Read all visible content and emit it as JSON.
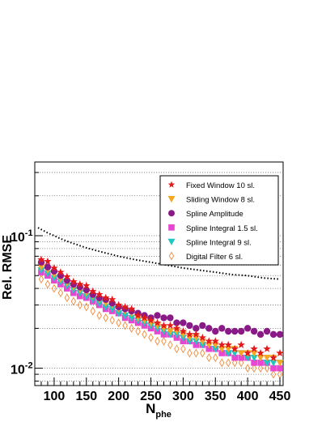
{
  "chart_data": {
    "type": "scatter",
    "xlabel": "N",
    "xlabel_sub": "phe",
    "ylabel": "Rel. RMSE",
    "xlim": [
      70,
      455
    ],
    "ylim": [
      0.0074,
      0.36
    ],
    "yscale": "log",
    "x_ticks": [
      100,
      150,
      200,
      250,
      300,
      350,
      400,
      450
    ],
    "x_tick_labels": [
      "100",
      "150",
      "200",
      "250",
      "300",
      "350",
      "400",
      "450"
    ],
    "y_tick_labels": [
      {
        "value": 0.1,
        "base": "10",
        "exp": "-1"
      },
      {
        "value": 0.01,
        "base": "10",
        "exp": "-2"
      }
    ],
    "grid": "horizontal-dotted",
    "legend_position": "top-right",
    "series": [
      {
        "name": "Fixed Window 10 sl.",
        "marker": "star",
        "color": "#e31a1c",
        "x": [
          80,
          90,
          100,
          110,
          120,
          130,
          140,
          150,
          160,
          170,
          180,
          190,
          200,
          210,
          220,
          230,
          240,
          250,
          260,
          270,
          280,
          290,
          300,
          310,
          320,
          330,
          340,
          350,
          360,
          370,
          380,
          390,
          400,
          410,
          420,
          430,
          440,
          450
        ],
        "y": [
          0.066,
          0.064,
          0.057,
          0.053,
          0.049,
          0.045,
          0.043,
          0.042,
          0.038,
          0.036,
          0.034,
          0.033,
          0.03,
          0.029,
          0.028,
          0.025,
          0.024,
          0.023,
          0.022,
          0.021,
          0.021,
          0.02,
          0.019,
          0.018,
          0.018,
          0.017,
          0.016,
          0.016,
          0.015,
          0.015,
          0.014,
          0.015,
          0.013,
          0.014,
          0.013,
          0.014,
          0.012,
          0.013
        ]
      },
      {
        "name": "Sliding Window 8 sl.",
        "marker": "triangle-down",
        "color": "#f5a623",
        "x": [
          80,
          90,
          100,
          110,
          120,
          130,
          140,
          150,
          160,
          170,
          180,
          190,
          200,
          210,
          220,
          230,
          240,
          250,
          260,
          270,
          280,
          290,
          300,
          310,
          320,
          330,
          340,
          350,
          360,
          370,
          380,
          390,
          400,
          410,
          420,
          430,
          440,
          450
        ],
        "y": [
          0.058,
          0.055,
          0.051,
          0.047,
          0.044,
          0.041,
          0.039,
          0.037,
          0.035,
          0.033,
          0.031,
          0.03,
          0.028,
          0.027,
          0.026,
          0.024,
          0.023,
          0.022,
          0.021,
          0.02,
          0.019,
          0.019,
          0.018,
          0.017,
          0.017,
          0.016,
          0.015,
          0.015,
          0.014,
          0.014,
          0.014,
          0.013,
          0.013,
          0.013,
          0.012,
          0.012,
          0.012,
          0.011
        ]
      },
      {
        "name": "Spline Amplitude",
        "marker": "circle",
        "color": "#8b1a89",
        "x": [
          80,
          90,
          100,
          110,
          120,
          130,
          140,
          150,
          160,
          170,
          180,
          190,
          200,
          210,
          220,
          230,
          240,
          250,
          260,
          270,
          280,
          290,
          300,
          310,
          320,
          330,
          340,
          350,
          360,
          370,
          380,
          390,
          400,
          410,
          420,
          430,
          440,
          450
        ],
        "y": [
          0.063,
          0.058,
          0.054,
          0.05,
          0.046,
          0.043,
          0.041,
          0.039,
          0.036,
          0.034,
          0.033,
          0.031,
          0.029,
          0.028,
          0.027,
          0.026,
          0.025,
          0.024,
          0.025,
          0.024,
          0.024,
          0.022,
          0.022,
          0.021,
          0.02,
          0.021,
          0.02,
          0.019,
          0.02,
          0.019,
          0.019,
          0.019,
          0.02,
          0.019,
          0.018,
          0.019,
          0.018,
          0.018
        ]
      },
      {
        "name": "Spline Integral 1.5 sl.",
        "marker": "square",
        "color": "#e845d2",
        "x": [
          80,
          90,
          100,
          110,
          120,
          130,
          140,
          150,
          160,
          170,
          180,
          190,
          200,
          210,
          220,
          230,
          240,
          250,
          260,
          270,
          280,
          290,
          300,
          310,
          320,
          330,
          340,
          350,
          360,
          370,
          380,
          390,
          400,
          410,
          420,
          430,
          440,
          450
        ],
        "y": [
          0.053,
          0.05,
          0.046,
          0.043,
          0.04,
          0.037,
          0.035,
          0.034,
          0.032,
          0.03,
          0.028,
          0.027,
          0.026,
          0.024,
          0.023,
          0.022,
          0.021,
          0.02,
          0.019,
          0.018,
          0.018,
          0.017,
          0.016,
          0.016,
          0.015,
          0.015,
          0.014,
          0.014,
          0.013,
          0.013,
          0.012,
          0.012,
          0.012,
          0.011,
          0.011,
          0.011,
          0.01,
          0.01
        ]
      },
      {
        "name": "Spline Integral 9 sl.",
        "marker": "triangle-down",
        "color": "#1fc7c1",
        "x": [
          80,
          90,
          100,
          110,
          120,
          130,
          140,
          150,
          160,
          170,
          180,
          190,
          200,
          210,
          220,
          230,
          240,
          250,
          260,
          270,
          280,
          290,
          300,
          310,
          320,
          330,
          340,
          350,
          360,
          370,
          380,
          390,
          400,
          410,
          420,
          430,
          440,
          450
        ],
        "y": [
          0.055,
          0.052,
          0.048,
          0.045,
          0.042,
          0.039,
          0.037,
          0.035,
          0.033,
          0.031,
          0.029,
          0.028,
          0.026,
          0.025,
          0.024,
          0.023,
          0.022,
          0.021,
          0.02,
          0.019,
          0.018,
          0.018,
          0.017,
          0.016,
          0.016,
          0.015,
          0.015,
          0.014,
          0.014,
          0.013,
          0.013,
          0.013,
          0.012,
          0.012,
          0.012,
          0.011,
          0.011,
          0.011
        ]
      },
      {
        "name": "Digital Filter 6 sl.",
        "marker": "diamond-open",
        "color": "#f08a3c",
        "x": [
          80,
          90,
          100,
          110,
          120,
          130,
          140,
          150,
          160,
          170,
          180,
          190,
          200,
          210,
          220,
          230,
          240,
          250,
          260,
          270,
          280,
          290,
          300,
          310,
          320,
          330,
          340,
          350,
          360,
          370,
          380,
          390,
          400,
          410,
          420,
          430,
          440,
          450
        ],
        "y": [
          0.047,
          0.043,
          0.04,
          0.037,
          0.034,
          0.032,
          0.03,
          0.029,
          0.027,
          0.025,
          0.024,
          0.023,
          0.022,
          0.021,
          0.02,
          0.019,
          0.018,
          0.017,
          0.016,
          0.016,
          0.015,
          0.014,
          0.014,
          0.013,
          0.013,
          0.013,
          0.012,
          0.012,
          0.011,
          0.011,
          0.011,
          0.011,
          0.01,
          0.01,
          0.01,
          0.01,
          0.009,
          0.009
        ]
      },
      {
        "marker": "dotted-line",
        "color": "#000000",
        "x": [
          75,
          90,
          100,
          110,
          125,
          150,
          175,
          200,
          225,
          250,
          275,
          300,
          325,
          350,
          375,
          400,
          425,
          450
        ],
        "y": [
          0.115,
          0.105,
          0.1,
          0.095,
          0.089,
          0.081,
          0.075,
          0.07,
          0.066,
          0.063,
          0.06,
          0.057,
          0.055,
          0.053,
          0.051,
          0.05,
          0.048,
          0.047
        ]
      }
    ]
  }
}
